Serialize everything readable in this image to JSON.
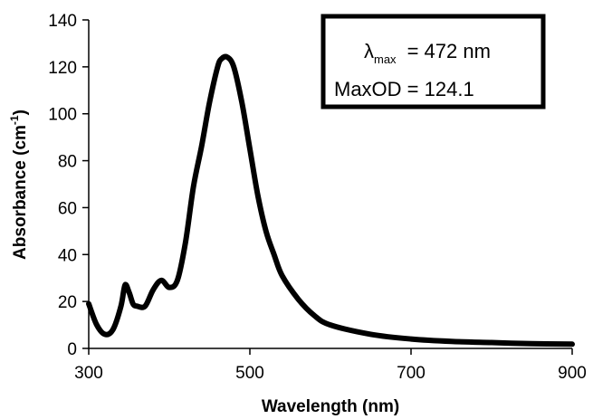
{
  "chart_data": {
    "type": "line",
    "xlabel": "Wavelength (nm)",
    "ylabel_main": "Absorbance (cm",
    "ylabel_sup": "-1",
    "ylabel_close": ")",
    "xlim": [
      300,
      900
    ],
    "ylim": [
      0,
      140
    ],
    "xticks": [
      300,
      500,
      700,
      900
    ],
    "yticks": [
      0,
      20,
      40,
      60,
      80,
      100,
      120,
      140
    ],
    "grid": false,
    "line_color": "#000000",
    "series": [
      {
        "x": [
          300,
          310,
          320,
          330,
          340,
          345,
          350,
          355,
          360,
          370,
          380,
          390,
          400,
          410,
          420,
          430,
          440,
          450,
          460,
          465,
          472,
          480,
          490,
          500,
          510,
          520,
          530,
          540,
          560,
          580,
          600,
          650,
          700,
          750,
          800,
          850,
          900
        ],
        "y": [
          19,
          10,
          6,
          8,
          18,
          27,
          24,
          19,
          18,
          18,
          25,
          29,
          26,
          29,
          45,
          69,
          86,
          105,
          120,
          123.5,
          124.1,
          120,
          105,
          85,
          65,
          50,
          40,
          31,
          21,
          14,
          10,
          6,
          4,
          3,
          2.5,
          2,
          1.8
        ]
      }
    ],
    "annotation": {
      "lambda_symbol": "λ",
      "lambda_sub": "max",
      "lambda_value": "=  472 nm",
      "maxod_text": "MaxOD = 124.1"
    }
  }
}
